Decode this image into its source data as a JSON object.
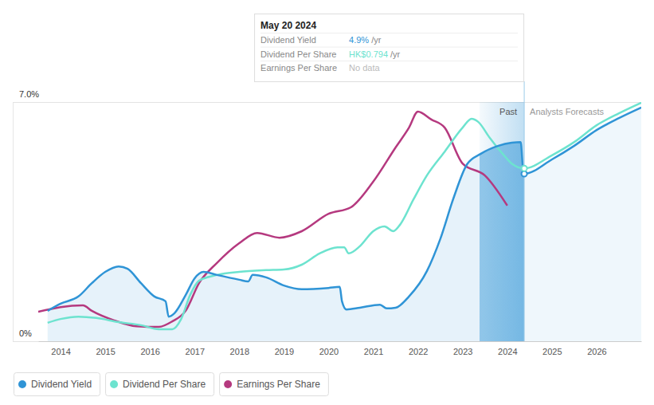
{
  "chart_data": {
    "type": "line",
    "xlim": [
      2013.5,
      2027.0
    ],
    "xticks": [
      2014,
      2015,
      2016,
      2017,
      2018,
      2019,
      2020,
      2021,
      2022,
      2023,
      2024,
      2025,
      2026
    ],
    "ylim": [
      0,
      7
    ],
    "yticks": [
      {
        "value": 0,
        "label": "0%"
      },
      {
        "value": 7,
        "label": "7.0%"
      }
    ],
    "grid": true,
    "legend": "bottom",
    "series": [
      {
        "name": "Dividend Yield",
        "type": "area",
        "color": "#2f94d6",
        "x": [
          2013.71,
          2014.0,
          2014.4,
          2014.7,
          2015.0,
          2015.3,
          2015.5,
          2015.8,
          2016.1,
          2016.35,
          2016.42,
          2016.55,
          2016.8,
          2017.0,
          2017.2,
          2017.5,
          2018.0,
          2018.2,
          2018.3,
          2018.6,
          2019.0,
          2019.4,
          2020.0,
          2020.25,
          2020.3,
          2020.4,
          2020.7,
          2021.15,
          2021.3,
          2021.5,
          2021.8,
          2022.2,
          2022.5,
          2022.8,
          2023.1,
          2023.4,
          2023.8,
          2024.1,
          2024.3,
          2024.35,
          2024.38,
          2025.0,
          2025.5,
          2026.0,
          2026.5,
          2027.0
        ],
        "values": [
          0.89,
          1.1,
          1.31,
          1.7,
          2.03,
          2.19,
          2.12,
          1.7,
          1.31,
          1.17,
          0.72,
          0.82,
          1.35,
          1.84,
          2.03,
          1.94,
          1.8,
          1.75,
          1.94,
          1.87,
          1.63,
          1.52,
          1.56,
          1.59,
          1.17,
          0.93,
          0.98,
          1.07,
          0.96,
          0.98,
          1.31,
          2.05,
          2.99,
          4.2,
          5.18,
          5.48,
          5.72,
          5.81,
          5.83,
          5.09,
          4.9,
          5.32,
          5.72,
          6.18,
          6.53,
          6.84
        ]
      },
      {
        "name": "Dividend Per Share",
        "type": "line",
        "color": "#6de3cf",
        "x": [
          2013.71,
          2014.0,
          2014.4,
          2014.8,
          2015.3,
          2015.8,
          2016.2,
          2016.5,
          2016.7,
          2016.9,
          2017.1,
          2017.5,
          2018.0,
          2018.6,
          2019.0,
          2019.4,
          2019.8,
          2020.2,
          2020.35,
          2020.45,
          2020.7,
          2021.0,
          2021.25,
          2021.45,
          2021.6,
          2021.9,
          2022.2,
          2022.6,
          2023.0,
          2023.2,
          2023.35,
          2023.6,
          2023.9,
          2024.1,
          2024.38,
          2025.0,
          2025.5,
          2026.0,
          2026.5,
          2027.0
        ],
        "values": [
          0.54,
          0.65,
          0.72,
          0.68,
          0.56,
          0.47,
          0.35,
          0.35,
          0.65,
          1.35,
          1.77,
          1.94,
          2.03,
          2.08,
          2.1,
          2.24,
          2.57,
          2.75,
          2.75,
          2.57,
          2.78,
          3.22,
          3.36,
          3.22,
          3.41,
          4.15,
          4.85,
          5.55,
          6.25,
          6.51,
          6.42,
          5.97,
          5.48,
          5.2,
          5.06,
          5.44,
          5.83,
          6.32,
          6.67,
          6.98
        ]
      },
      {
        "name": "Earnings Per Share",
        "type": "line",
        "color": "#b5397f",
        "x": [
          2013.5,
          2014.0,
          2014.5,
          2014.7,
          2015.2,
          2015.7,
          2016.2,
          2016.5,
          2016.8,
          2017.1,
          2017.5,
          2018.0,
          2018.4,
          2018.9,
          2019.4,
          2020.0,
          2020.5,
          2021.0,
          2021.5,
          2021.8,
          2022.0,
          2022.3,
          2022.6,
          2023.0,
          2023.5,
          2024.0
        ],
        "values": [
          0.86,
          1.0,
          1.05,
          0.89,
          0.61,
          0.44,
          0.42,
          0.58,
          0.89,
          1.7,
          2.29,
          2.87,
          3.17,
          3.03,
          3.22,
          3.73,
          3.92,
          4.67,
          5.67,
          6.25,
          6.72,
          6.49,
          6.25,
          5.2,
          4.85,
          3.97
        ]
      }
    ],
    "past_period": {
      "label": "Past",
      "x": [
        2023.38,
        2024.38
      ]
    },
    "forecast_label": "Analysts Forecasts",
    "tooltip": {
      "date": "May 20 2024",
      "rows": [
        {
          "label": "Dividend Yield",
          "value": "4.9%",
          "unit": "/yr"
        },
        {
          "label": "Dividend Per Share",
          "value": "HK$0.794",
          "unit": "/yr"
        },
        {
          "label": "Earnings Per Share",
          "value": "No data"
        }
      ]
    }
  }
}
